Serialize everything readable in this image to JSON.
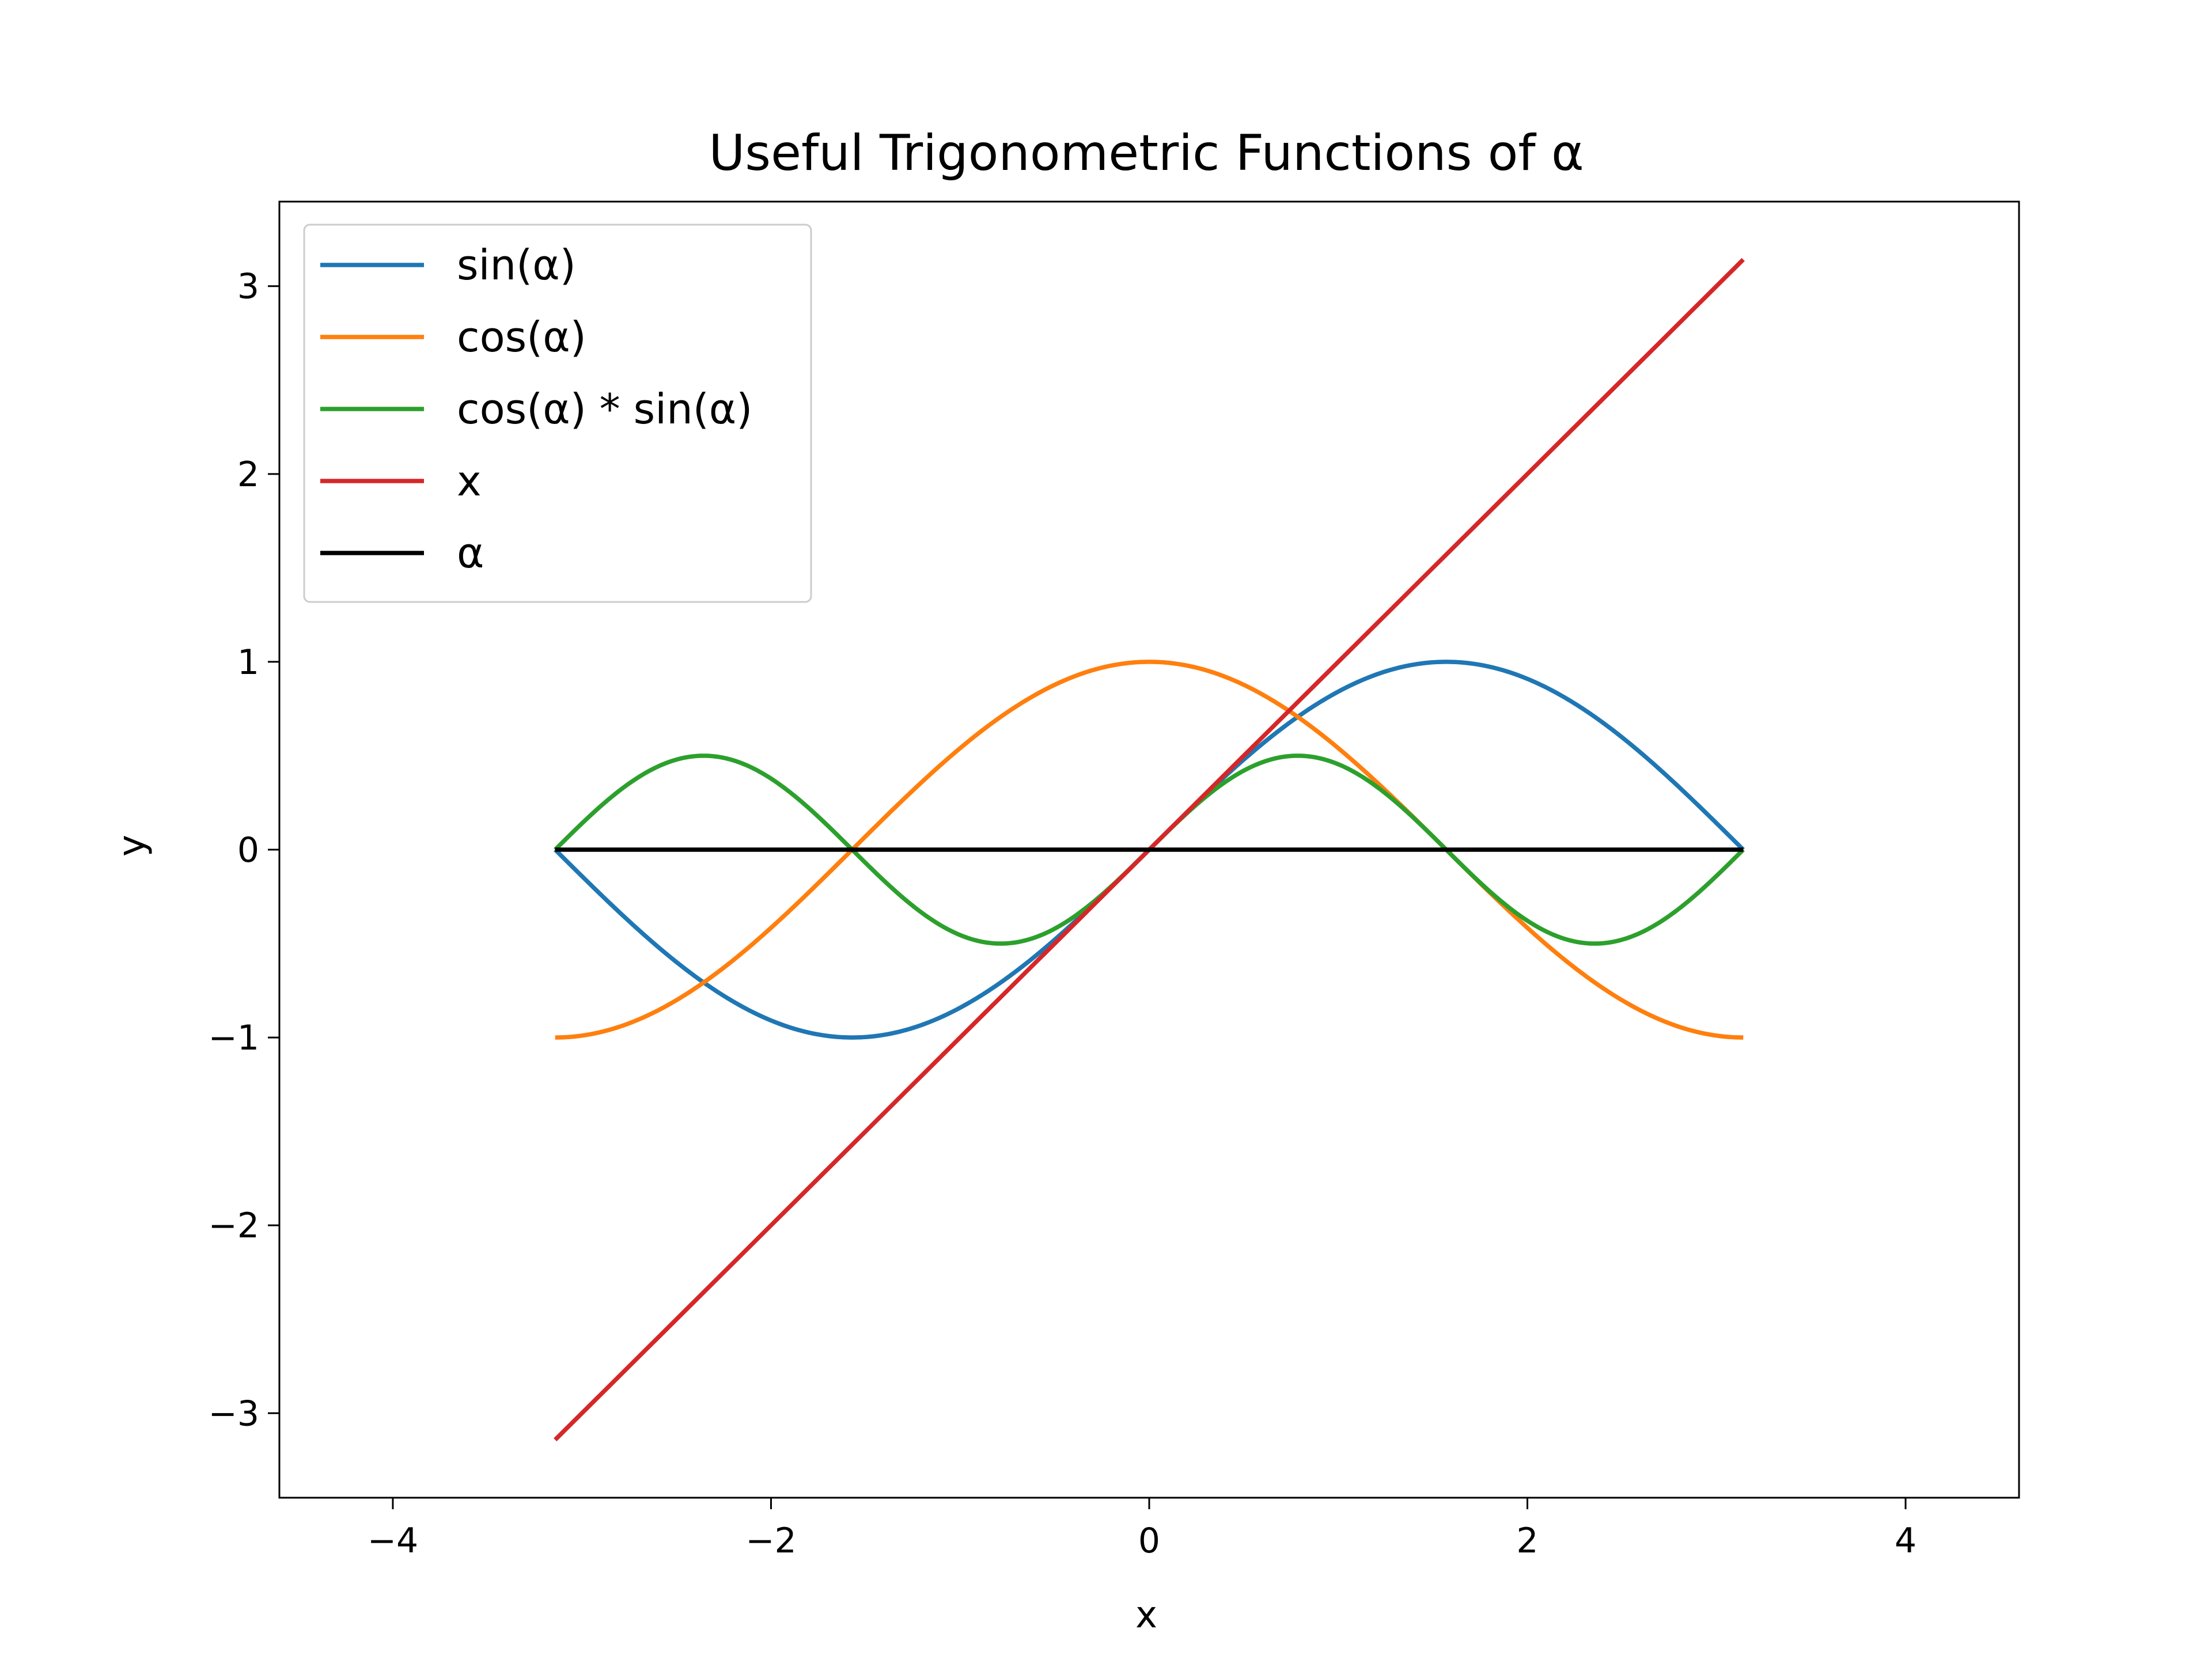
{
  "chart_data": {
    "type": "line",
    "title": "Useful Trigonometric Functions of α",
    "xlabel": "x",
    "ylabel": "y",
    "xlim": [
      -4.6,
      4.6
    ],
    "ylim": [
      -3.45,
      3.45
    ],
    "xticks": [
      {
        "value": -4,
        "label": "−4"
      },
      {
        "value": -2,
        "label": "−2"
      },
      {
        "value": 0,
        "label": "0"
      },
      {
        "value": 2,
        "label": "2"
      },
      {
        "value": 4,
        "label": "4"
      }
    ],
    "yticks": [
      {
        "value": -3,
        "label": "−3"
      },
      {
        "value": -2,
        "label": "−2"
      },
      {
        "value": -1,
        "label": "−1"
      },
      {
        "value": 0,
        "label": "0"
      },
      {
        "value": 1,
        "label": "1"
      },
      {
        "value": 2,
        "label": "2"
      },
      {
        "value": 3,
        "label": "3"
      }
    ],
    "grid": false,
    "legend_position": "upper-left",
    "x_domain": [
      -3.14159,
      3.14159
    ],
    "series": [
      {
        "name": "sin(α)",
        "function": "sin(x)",
        "color": "#1f77b4"
      },
      {
        "name": "cos(α)",
        "function": "cos(x)",
        "color": "#ff7f0e"
      },
      {
        "name": "cos(α) * sin(α)",
        "function": "cos(x)*sin(x)",
        "color": "#2ca02c"
      },
      {
        "name": "x",
        "function": "x",
        "color": "#d62728"
      },
      {
        "name": "α",
        "function": "0",
        "color": "#000000"
      }
    ]
  }
}
